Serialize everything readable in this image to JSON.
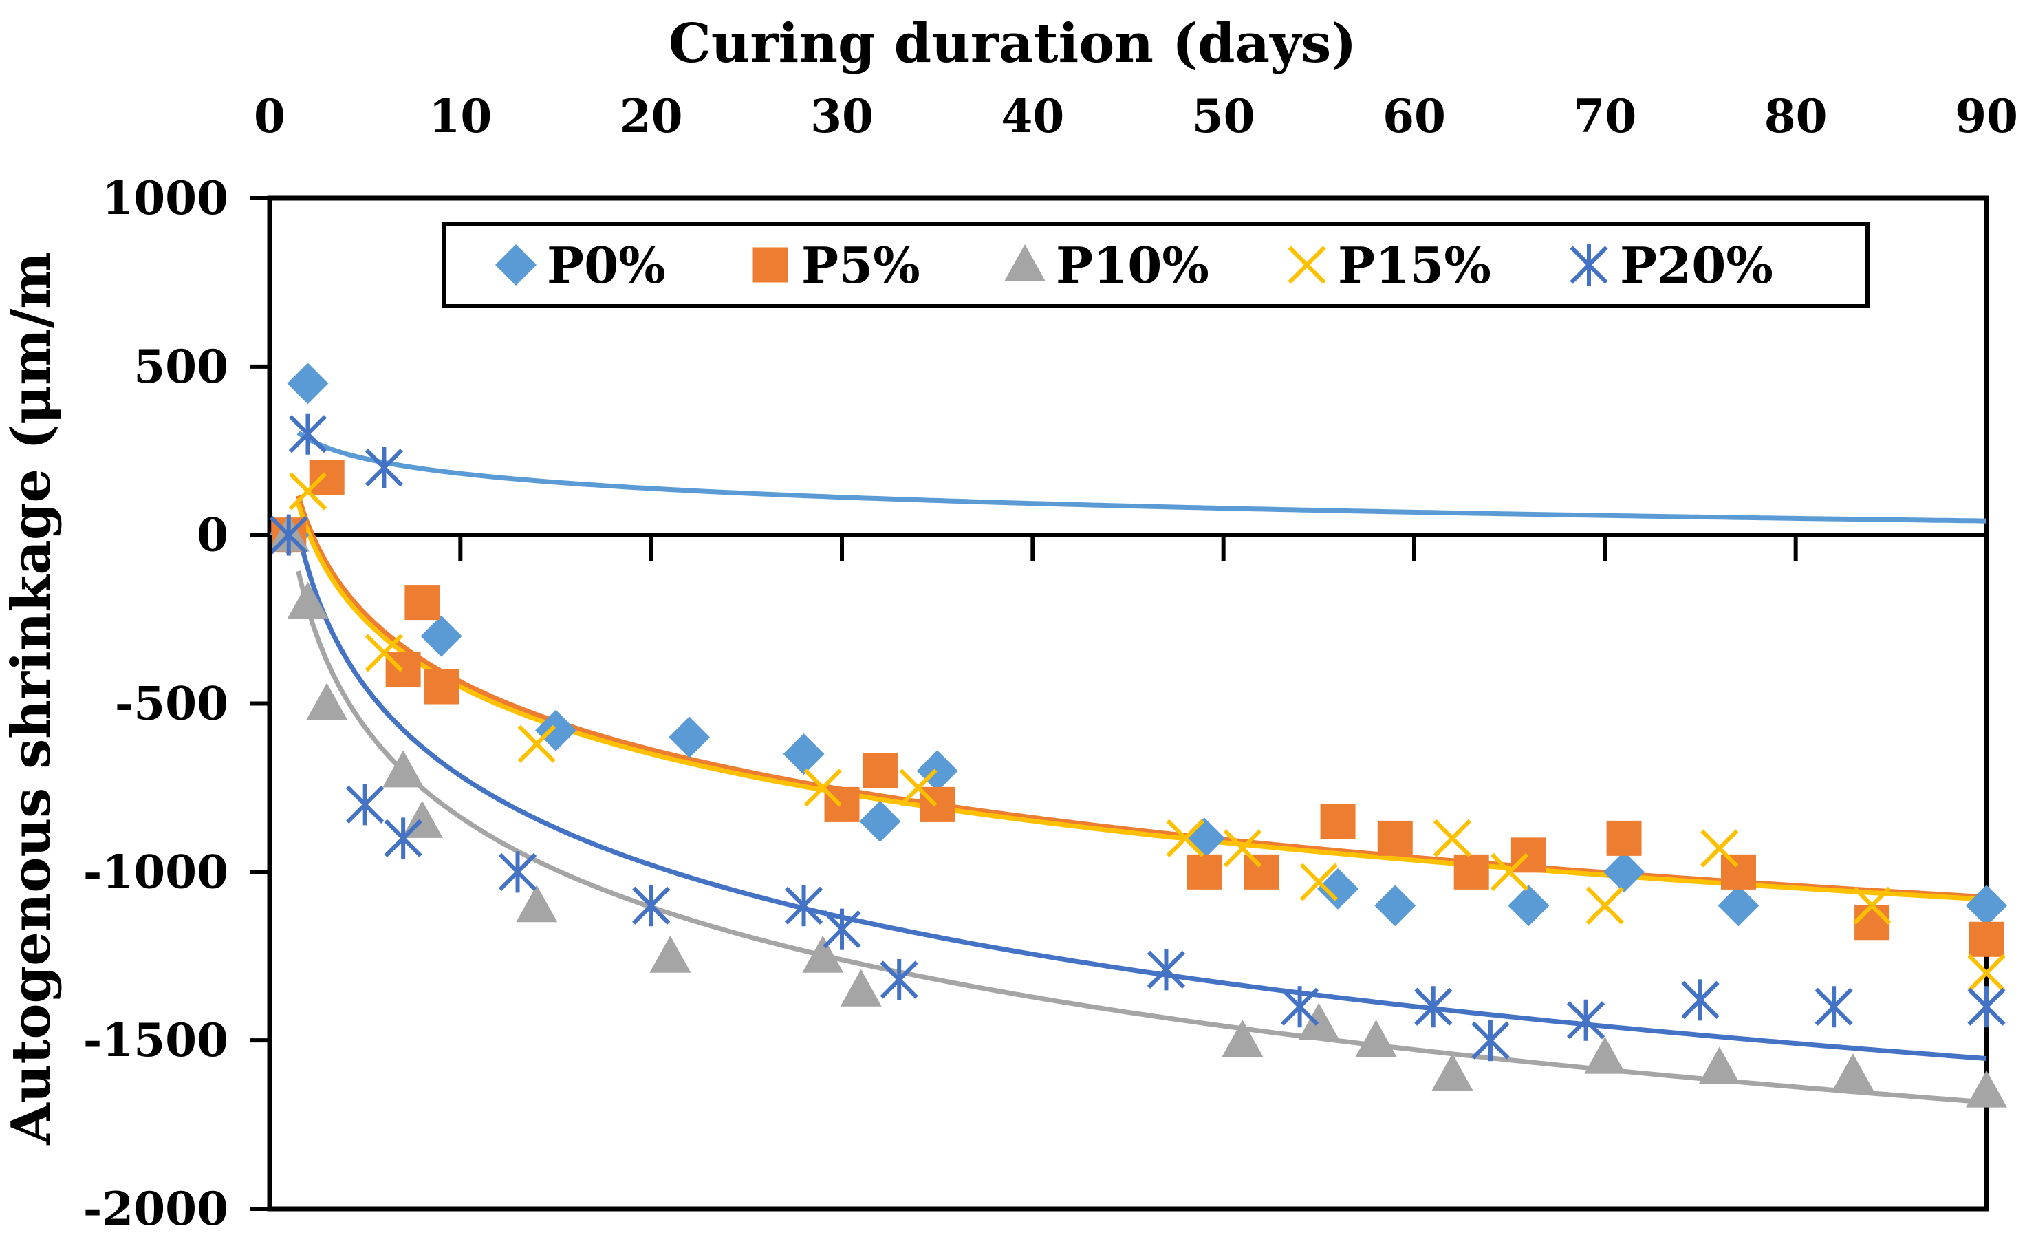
{
  "chart_data": {
    "type": "scatter",
    "title": "",
    "xlabel": "Curing duration (days)",
    "ylabel": "Autogenous shrinkage (μm/m",
    "xlim": [
      0,
      90
    ],
    "ylim": [
      -2000,
      1000
    ],
    "x_ticks": [
      "0",
      "10",
      "20",
      "30",
      "40",
      "50",
      "60",
      "70",
      "80",
      "90"
    ],
    "y_ticks": [
      "1000",
      "500",
      "0",
      "-500",
      "-1000",
      "-1500",
      "-2000"
    ],
    "x_tick_values": [
      0,
      10,
      20,
      30,
      40,
      50,
      60,
      70,
      80,
      90
    ],
    "y_tick_values": [
      1000,
      500,
      0,
      -500,
      -1000,
      -1500,
      -2000
    ],
    "x_axis_position": "top",
    "legend_position": "top",
    "trendline": "logarithmic",
    "series": [
      {
        "name": "P0%",
        "marker": "diamond",
        "color": "#5B9BD5",
        "trend_color": "#5B9BD5",
        "x": [
          1,
          2,
          9,
          15,
          22,
          28,
          32,
          35,
          49,
          56,
          59,
          66,
          71,
          77,
          90
        ],
        "y": [
          0,
          450,
          -300,
          -580,
          -600,
          -650,
          -850,
          -700,
          -900,
          -1050,
          -1100,
          -1100,
          -1000,
          -1100,
          -1100
        ],
        "trend": [
          330,
          -64
        ]
      },
      {
        "name": "P5%",
        "marker": "square",
        "color": "#ED7D31",
        "trend_color": "#ED7D31",
        "x": [
          1,
          3,
          7,
          8,
          9,
          30,
          32,
          35,
          49,
          52,
          56,
          59,
          63,
          66,
          71,
          77,
          84,
          90
        ],
        "y": [
          0,
          170,
          -400,
          -200,
          -450,
          -800,
          -700,
          -800,
          -1000,
          -1000,
          -850,
          -900,
          -1000,
          -950,
          -900,
          -1000,
          -1150,
          -1200
        ],
        "trend": [
          235,
          -291
        ]
      },
      {
        "name": "P10%",
        "marker": "triangle",
        "color": "#A5A5A5",
        "trend_color": "#A5A5A5",
        "x": [
          1,
          2,
          3,
          7,
          8,
          14,
          21,
          29,
          31,
          51,
          55,
          58,
          62,
          70,
          76,
          83,
          90
        ],
        "y": [
          0,
          -200,
          -500,
          -700,
          -850,
          -1100,
          -1250,
          -1250,
          -1350,
          -1500,
          -1450,
          -1500,
          -1600,
          -1550,
          -1580,
          -1600,
          -1650
        ],
        "trend": [
          49,
          -385
        ]
      },
      {
        "name": "P15%",
        "marker": "x",
        "color": "#FFC000",
        "trend_color": "#FFC000",
        "x": [
          1,
          2,
          6,
          14,
          29,
          34,
          48,
          51,
          55,
          62,
          65,
          70,
          76,
          84,
          90
        ],
        "y": [
          0,
          130,
          -350,
          -620,
          -750,
          -750,
          -900,
          -930,
          -1030,
          -900,
          -1000,
          -1100,
          -930,
          -1100,
          -1300
        ],
        "trend": [
          210,
          -287
        ]
      },
      {
        "name": "P20%",
        "marker": "asterisk",
        "color": "#4472C4",
        "trend_color": "#4472C4",
        "x": [
          1,
          2,
          6,
          5,
          7,
          13,
          20,
          28,
          30,
          33,
          47,
          54,
          61,
          64,
          69,
          75,
          82,
          90
        ],
        "y": [
          0,
          300,
          200,
          -800,
          -900,
          -1000,
          -1100,
          -1100,
          -1170,
          -1320,
          -1290,
          -1400,
          -1400,
          -1500,
          -1440,
          -1380,
          -1400,
          -1400
        ],
        "trend": [
          165,
          -382
        ]
      }
    ]
  }
}
